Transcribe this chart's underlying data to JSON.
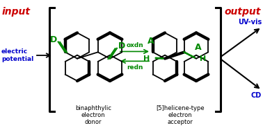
{
  "input_label": "input",
  "output_label": "output",
  "electric_label": "electric\npotential",
  "oxdn_label": "oxdn",
  "redn_label": "redn",
  "donor_label": "binaphthylic\nelectron\ndonor",
  "acceptor_label": "[5]helicene-type\nelectron\nacceptor",
  "uvvis_label": "UV-vis",
  "cd_label": "CD",
  "d_label": "D",
  "a_label": "A",
  "h_label": "H",
  "input_color": "#cc0000",
  "output_color": "#cc0000",
  "electric_color": "#0000cc",
  "arrow_color": "#000000",
  "oxdn_redn_color": "#008800",
  "label_color": "#000000",
  "uvvis_cd_color": "#0000cc",
  "d_color": "#008800",
  "a_color": "#008800",
  "h_color": "#008800",
  "bracket_color": "#000000",
  "bg_color": "#ffffff",
  "struct_line_color": "#000000",
  "fig_width": 3.78,
  "fig_height": 1.85,
  "dpi": 100
}
